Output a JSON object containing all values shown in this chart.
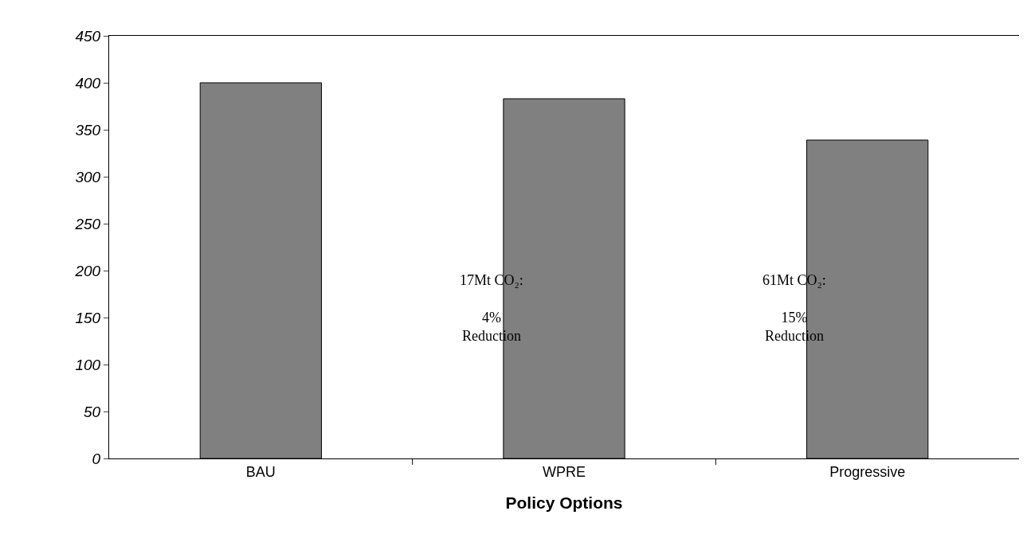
{
  "chart_data": {
    "type": "bar",
    "xlabel": "Policy Options",
    "categories": [
      "BAU",
      "WPRE",
      "Progressive"
    ],
    "values": [
      400,
      383,
      339
    ],
    "color": "#808080",
    "ylim": [
      0,
      450
    ],
    "yticks": [
      0,
      50,
      100,
      150,
      200,
      250,
      300,
      350,
      400,
      450
    ],
    "grid": false,
    "annotations": [
      "17Mt CO₂:\n\n4%\nReduction",
      "61Mt CO₂:\n\n15%\nReduction"
    ]
  }
}
